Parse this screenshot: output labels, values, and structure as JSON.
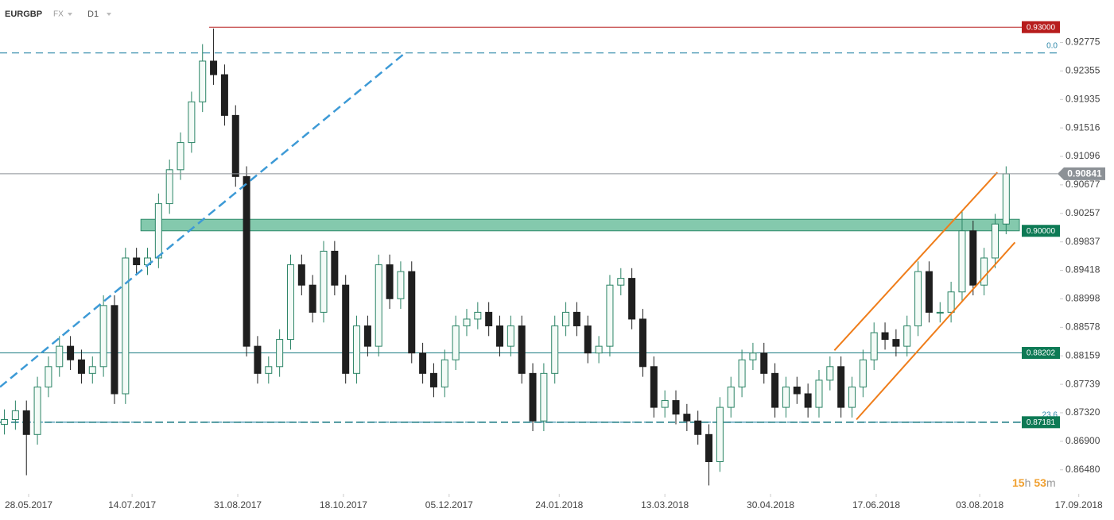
{
  "header": {
    "symbol": "EURGBP",
    "market": "FX",
    "timeframe": "D1"
  },
  "timer": {
    "hours": "15",
    "hours_unit": "h",
    "minutes": "53",
    "minutes_unit": "m"
  },
  "chart_data": {
    "type": "candlestick",
    "x": [
      "17.05.2017",
      "22.05.2017",
      "27.05.2017",
      "01.06.2017",
      "06.06.2017",
      "11.06.2017",
      "16.06.2017",
      "21.06.2017",
      "26.06.2017",
      "01.07.2017",
      "06.07.2017",
      "11.07.2017",
      "16.07.2017",
      "21.07.2017",
      "26.07.2017",
      "31.07.2017",
      "05.08.2017",
      "10.08.2017",
      "15.08.2017",
      "20.08.2017",
      "25.08.2017",
      "30.08.2017",
      "04.09.2017",
      "09.09.2017",
      "14.09.2017",
      "19.09.2017",
      "24.09.2017",
      "29.09.2017",
      "04.10.2017",
      "09.10.2017",
      "14.10.2017",
      "19.10.2017",
      "24.10.2017",
      "29.10.2017",
      "03.11.2017",
      "08.11.2017",
      "13.11.2017",
      "18.11.2017",
      "23.11.2017",
      "28.11.2017",
      "03.12.2017",
      "08.12.2017",
      "13.12.2017",
      "18.12.2017",
      "23.12.2017",
      "28.12.2017",
      "02.01.2018",
      "07.01.2018",
      "12.01.2018",
      "17.01.2018",
      "22.01.2018",
      "27.01.2018",
      "01.02.2018",
      "06.02.2018",
      "11.02.2018",
      "16.02.2018",
      "21.02.2018",
      "26.02.2018",
      "03.03.2018",
      "08.03.2018",
      "13.03.2018",
      "18.03.2018",
      "23.03.2018",
      "28.03.2018",
      "02.04.2018",
      "07.04.2018",
      "12.04.2018",
      "17.04.2018",
      "22.04.2018",
      "27.04.2018",
      "02.05.2018",
      "07.05.2018",
      "12.05.2018",
      "17.05.2018",
      "22.05.2018",
      "27.05.2018",
      "01.06.2018",
      "06.06.2018",
      "11.06.2018",
      "16.06.2018",
      "21.06.2018",
      "26.06.2018",
      "01.07.2018",
      "06.07.2018",
      "11.07.2018",
      "16.07.2018",
      "21.07.2018",
      "26.07.2018",
      "31.07.2018",
      "05.08.2018",
      "10.08.2018",
      "15.08.2018"
    ],
    "open": [
      0.8715,
      0.8722,
      0.8735,
      0.87,
      0.877,
      0.88,
      0.883,
      0.881,
      0.879,
      0.88,
      0.889,
      0.876,
      0.896,
      0.895,
      0.896,
      0.904,
      0.909,
      0.913,
      0.919,
      0.925,
      0.923,
      0.917,
      0.908,
      0.883,
      0.879,
      0.88,
      0.884,
      0.895,
      0.892,
      0.888,
      0.897,
      0.892,
      0.879,
      0.886,
      0.883,
      0.895,
      0.89,
      0.894,
      0.882,
      0.879,
      0.877,
      0.881,
      0.886,
      0.887,
      0.888,
      0.886,
      0.883,
      0.886,
      0.879,
      0.872,
      0.879,
      0.886,
      0.888,
      0.886,
      0.882,
      0.883,
      0.892,
      0.893,
      0.887,
      0.88,
      0.874,
      0.875,
      0.873,
      0.872,
      0.87,
      0.866,
      0.874,
      0.877,
      0.881,
      0.882,
      0.879,
      0.874,
      0.877,
      0.876,
      0.874,
      0.878,
      0.88,
      0.874,
      0.877,
      0.881,
      0.885,
      0.884,
      0.883,
      0.886,
      0.894,
      0.888,
      0.888,
      0.891,
      0.9,
      0.892,
      0.896,
      0.901
    ],
    "high": [
      0.8737,
      0.875,
      0.875,
      0.8785,
      0.8815,
      0.8845,
      0.8845,
      0.8825,
      0.8815,
      0.8905,
      0.8905,
      0.8975,
      0.8975,
      0.8975,
      0.9055,
      0.9105,
      0.9145,
      0.9205,
      0.9275,
      0.9298,
      0.9245,
      0.9185,
      0.9095,
      0.8845,
      0.8815,
      0.8855,
      0.8965,
      0.8965,
      0.8935,
      0.8985,
      0.8985,
      0.8935,
      0.8875,
      0.8875,
      0.8965,
      0.8965,
      0.8955,
      0.8955,
      0.8835,
      0.8805,
      0.8825,
      0.8875,
      0.8885,
      0.8895,
      0.8895,
      0.8875,
      0.8875,
      0.8875,
      0.8805,
      0.8805,
      0.8875,
      0.8895,
      0.8895,
      0.8875,
      0.8845,
      0.8935,
      0.8945,
      0.8945,
      0.8885,
      0.8815,
      0.8765,
      0.8765,
      0.8745,
      0.8735,
      0.8715,
      0.8755,
      0.8785,
      0.8825,
      0.8835,
      0.8835,
      0.8805,
      0.8785,
      0.8785,
      0.8775,
      0.8795,
      0.8815,
      0.8815,
      0.8785,
      0.8825,
      0.8865,
      0.8865,
      0.8855,
      0.8875,
      0.8955,
      0.8955,
      0.8895,
      0.8925,
      0.903,
      0.9015,
      0.8975,
      0.9025,
      0.9095
    ],
    "low": [
      0.87,
      0.8707,
      0.864,
      0.8685,
      0.8755,
      0.8785,
      0.8795,
      0.8775,
      0.8775,
      0.8785,
      0.8745,
      0.8745,
      0.8935,
      0.8935,
      0.8945,
      0.9025,
      0.9075,
      0.9115,
      0.9175,
      0.9215,
      0.9155,
      0.9065,
      0.8815,
      0.8775,
      0.8775,
      0.8785,
      0.8825,
      0.8905,
      0.8865,
      0.8865,
      0.8905,
      0.8775,
      0.8775,
      0.8815,
      0.8815,
      0.8885,
      0.8885,
      0.8805,
      0.8775,
      0.8755,
      0.8755,
      0.8795,
      0.8845,
      0.8855,
      0.8845,
      0.8815,
      0.8815,
      0.8775,
      0.8705,
      0.8705,
      0.8775,
      0.8845,
      0.8845,
      0.8805,
      0.8805,
      0.8815,
      0.8905,
      0.8855,
      0.8785,
      0.8725,
      0.8725,
      0.8715,
      0.8705,
      0.8685,
      0.8625,
      0.8645,
      0.8725,
      0.8755,
      0.8795,
      0.8775,
      0.8725,
      0.8725,
      0.8745,
      0.8725,
      0.8725,
      0.8765,
      0.8725,
      0.8725,
      0.8755,
      0.8795,
      0.8825,
      0.8815,
      0.8815,
      0.8845,
      0.8865,
      0.8865,
      0.8865,
      0.8895,
      0.8905,
      0.8905,
      0.8945,
      0.8995
    ],
    "close": [
      0.8722,
      0.8735,
      0.87,
      0.877,
      0.88,
      0.883,
      0.881,
      0.879,
      0.88,
      0.889,
      0.876,
      0.896,
      0.895,
      0.896,
      0.904,
      0.909,
      0.913,
      0.919,
      0.925,
      0.923,
      0.917,
      0.908,
      0.883,
      0.879,
      0.88,
      0.884,
      0.895,
      0.892,
      0.888,
      0.897,
      0.892,
      0.879,
      0.886,
      0.883,
      0.895,
      0.89,
      0.894,
      0.882,
      0.879,
      0.877,
      0.881,
      0.886,
      0.887,
      0.888,
      0.886,
      0.883,
      0.886,
      0.879,
      0.872,
      0.879,
      0.886,
      0.888,
      0.886,
      0.882,
      0.883,
      0.892,
      0.893,
      0.887,
      0.88,
      0.874,
      0.875,
      0.873,
      0.872,
      0.87,
      0.866,
      0.874,
      0.877,
      0.881,
      0.882,
      0.879,
      0.874,
      0.877,
      0.876,
      0.874,
      0.878,
      0.88,
      0.874,
      0.877,
      0.881,
      0.885,
      0.884,
      0.883,
      0.886,
      0.894,
      0.888,
      0.888,
      0.891,
      0.9,
      0.892,
      0.896,
      0.901,
      0.9084
    ],
    "up_color": "#2b8466",
    "down_color": "#1f1f1f",
    "xlim": [
      "15.05.2017",
      "03.10.2018"
    ],
    "xticks": [
      "28.05.2017",
      "14.07.2017",
      "31.08.2017",
      "18.10.2017",
      "05.12.2017",
      "24.01.2018",
      "13.03.2018",
      "30.04.2018",
      "17.06.2018",
      "03.08.2018",
      "17.09.2018"
    ],
    "ylim": [
      0.8615,
      0.934
    ],
    "yticks": [
      0.92775,
      0.92355,
      0.91935,
      0.91516,
      0.91096,
      0.90677,
      0.90257,
      0.89837,
      0.89418,
      0.88998,
      0.88578,
      0.88159,
      0.87739,
      {
        "value": 0.8732,
        "label": "0.87320"
      },
      {
        "value": 0.869,
        "label": "0.86900"
      },
      {
        "value": 0.8648,
        "label": "0.86480"
      }
    ],
    "last_price": 0.90841,
    "last_price_color": "#8c9196",
    "levels": [
      {
        "price": {
          "value": 0.93,
          "label": "0.93000"
        },
        "color": "#b71c1c",
        "box": "#b71c1c",
        "from": "18.08.2017"
      },
      {
        "price": 0.88202,
        "color": "#1b7a82",
        "box": "#0d7a55"
      },
      {
        "price": 0.87181,
        "color": "#1b7a82",
        "box": "#0d7a55",
        "dash": true
      }
    ],
    "zone": {
      "from": "18.07.2017",
      "low": {
        "value": 0.9,
        "label": "0.90000"
      },
      "high": 0.9017,
      "color": "#6fbf9f",
      "box": "#0d7a55"
    },
    "fib_levels": [
      {
        "label": "0.0",
        "value": 0.9262
      },
      {
        "label": "23.6",
        "value": 0.87181
      }
    ],
    "fib_color": "#2a86a8",
    "trendlines": [
      {
        "points": [
          [
            "15.05.2017",
            0.877
          ],
          [
            "15.11.2017",
            0.9262
          ]
        ],
        "color": "#3d9ad6",
        "dash": true
      },
      {
        "points": [
          [
            "29.05.2018",
            0.8824
          ],
          [
            "11.08.2018",
            0.9086
          ]
        ],
        "color": "#ef7d1a"
      },
      {
        "points": [
          [
            "08.06.2018",
            0.8722
          ],
          [
            "19.08.2018",
            0.8983
          ]
        ],
        "color": "#ef7d1a"
      }
    ]
  }
}
